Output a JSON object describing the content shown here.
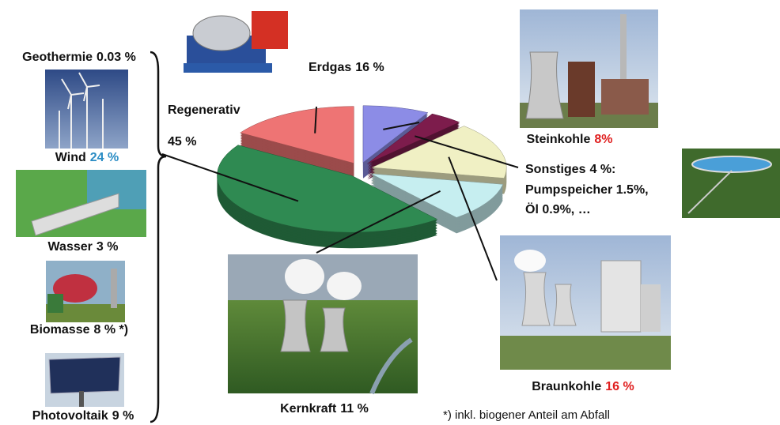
{
  "chart_data": {
    "type": "pie",
    "categories": [
      "Steinkohle",
      "Sonstiges",
      "Braunkohle",
      "Kernkraft",
      "Regenerativ",
      "Erdgas"
    ],
    "values": [
      8,
      4,
      16,
      11,
      45,
      16
    ],
    "value_labels": [
      "8%",
      "4 %:",
      "16 %",
      "11 %",
      "45 %",
      "16 %"
    ],
    "colors": [
      "#8c8ce6",
      "#7d1c4c",
      "#f0f0c4",
      "#c6eef0",
      "#2f8a52",
      "#ee7474"
    ],
    "value_label_colors": [
      "#e02020",
      "#111111",
      "#e02020",
      "#111111",
      "#111111",
      "#111111"
    ],
    "details": [
      "Pumpspeicher 1.5%,",
      "Öl 0.9%, …"
    ],
    "breakdown": [
      {
        "name": "Geothermie",
        "label": "0.03 %",
        "color": "#111111"
      },
      {
        "name": "Wind",
        "label": "24 %",
        "color": "#2a8cc4"
      },
      {
        "name": "Wasser",
        "label": "3 %",
        "color": "#111111"
      },
      {
        "name": "Biomasse",
        "label": "8 % *)",
        "color": "#111111"
      },
      {
        "name": "Photovoltaik",
        "label": "9 %",
        "color": "#111111"
      }
    ],
    "footnote": "*) inkl. biogener Anteil am Abfall"
  }
}
